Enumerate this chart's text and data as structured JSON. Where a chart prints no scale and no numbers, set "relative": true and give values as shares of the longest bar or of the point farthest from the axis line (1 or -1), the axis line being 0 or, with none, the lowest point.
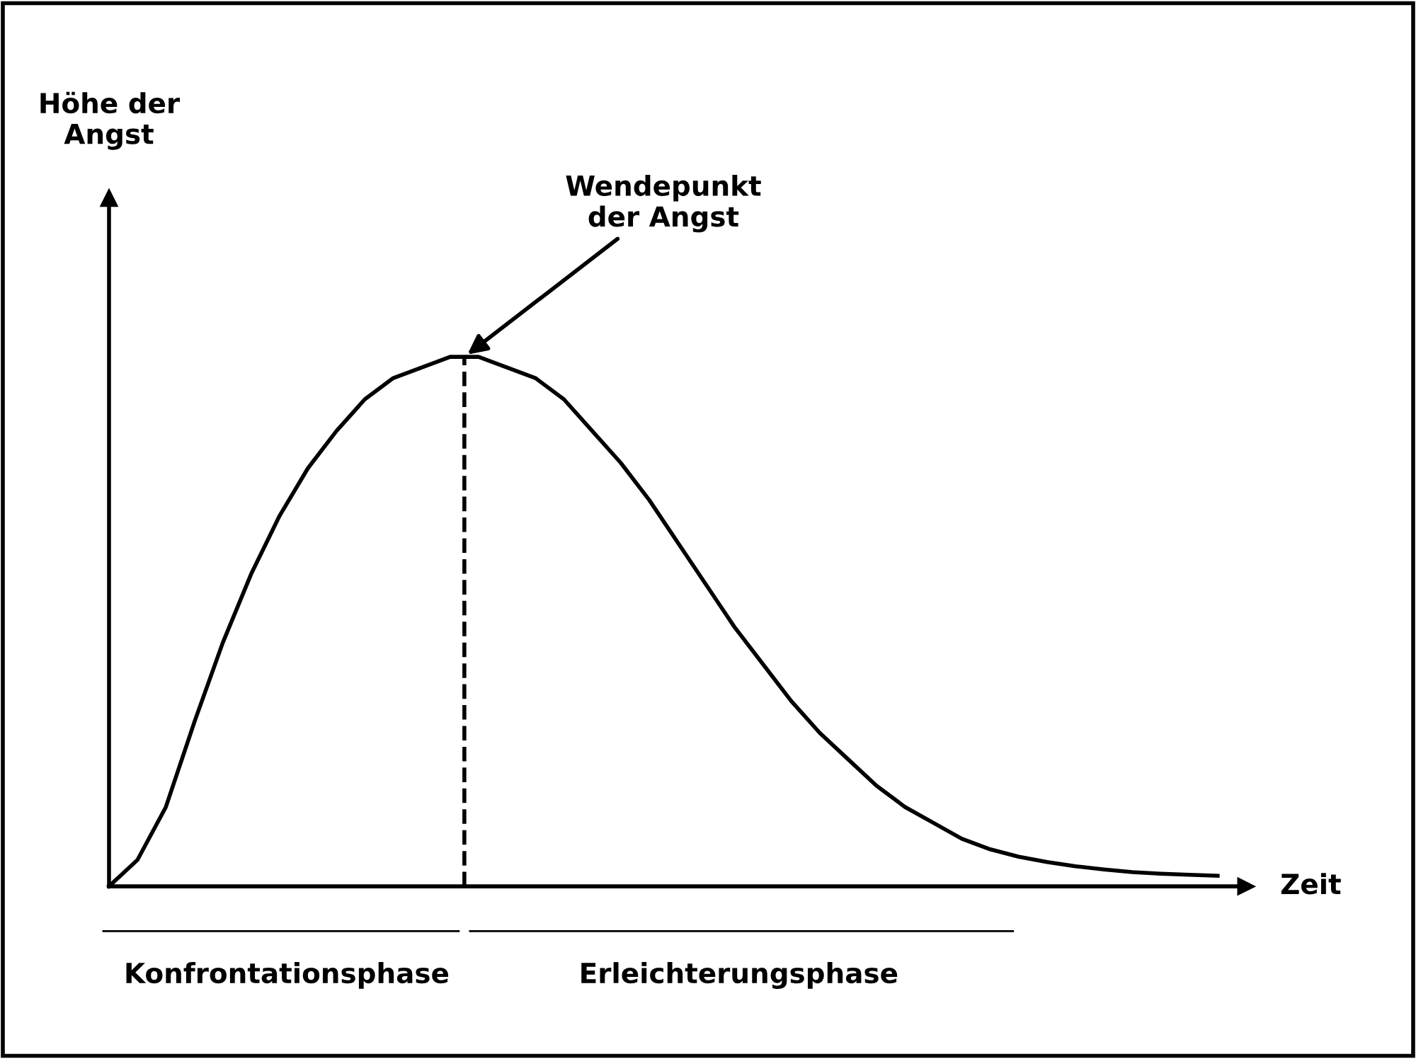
{
  "chart_data": {
    "type": "line",
    "relative": true,
    "xlabel": "Zeit",
    "categories": [
      null,
      null,
      null,
      null,
      null,
      null,
      null,
      null,
      null,
      null,
      null,
      null,
      null,
      null,
      null,
      null,
      null,
      null,
      null,
      null,
      null,
      null,
      null,
      null,
      null,
      null,
      null,
      null,
      null,
      null,
      null,
      null,
      null,
      null,
      null,
      null,
      null,
      null,
      null,
      null
    ],
    "series": [
      {
        "color": "#000000",
        "values": [
          0,
          0.05,
          0.15,
          0.31,
          0.46,
          0.59,
          0.7,
          0.79,
          0.86,
          0.92,
          0.96,
          0.98,
          1.0,
          1.0,
          0.98,
          0.96,
          0.92,
          0.86,
          0.8,
          0.73,
          0.65,
          0.57,
          0.49,
          0.42,
          0.35,
          0.29,
          0.24,
          0.19,
          0.15,
          0.12,
          0.09,
          0.07,
          0.056,
          0.046,
          0.038,
          0.032,
          0.027,
          0.024,
          0.022,
          0.02
        ]
      }
    ],
    "annotations": [
      "Höhe der\nAngst",
      "Wendepunkt\nder Angst",
      "Konfrontationsphase",
      "Erleichterungsphase"
    ],
    "marker": "none",
    "line_style": "solid"
  }
}
